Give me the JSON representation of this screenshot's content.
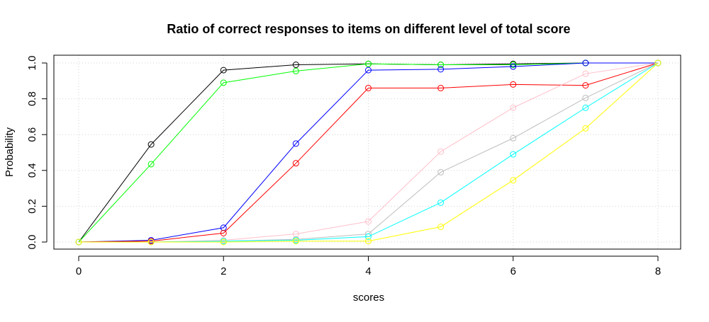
{
  "chart_data": {
    "type": "line",
    "title": "Ratio of correct responses to items on different level of total score",
    "xlabel": "scores",
    "ylabel": "Probability",
    "xlim": [
      0,
      8
    ],
    "ylim": [
      0,
      1
    ],
    "x_ticks": [
      "0",
      "2",
      "4",
      "6",
      "8"
    ],
    "y_ticks": [
      "0.0",
      "0.2",
      "0.4",
      "0.6",
      "0.8",
      "1.0"
    ],
    "grid": true,
    "x": [
      0,
      1,
      2,
      3,
      4,
      5,
      6,
      7,
      8
    ],
    "series": [
      {
        "color": "#000000",
        "values": [
          0,
          0.545,
          0.96,
          0.99,
          0.995,
          0.99,
          0.995,
          1.0,
          1.0
        ]
      },
      {
        "color": "#00ff00",
        "values": [
          0,
          0.435,
          0.89,
          0.955,
          0.995,
          0.99,
          0.99,
          1.0,
          1.0
        ]
      },
      {
        "color": "#0000ff",
        "values": [
          0,
          0.01,
          0.08,
          0.55,
          0.96,
          0.965,
          0.98,
          1.0,
          1.0
        ]
      },
      {
        "color": "#ff0000",
        "values": [
          0,
          0.005,
          0.05,
          0.44,
          0.86,
          0.86,
          0.88,
          0.875,
          1.0
        ]
      },
      {
        "color": "#ffc0cb",
        "values": [
          0,
          0.0,
          0.01,
          0.045,
          0.115,
          0.505,
          0.75,
          0.94,
          1.0
        ]
      },
      {
        "color": "#bebebe",
        "values": [
          0,
          0.0,
          0.005,
          0.015,
          0.045,
          0.39,
          0.58,
          0.805,
          1.0
        ]
      },
      {
        "color": "#00ffff",
        "values": [
          0,
          0.0,
          0.005,
          0.01,
          0.03,
          0.22,
          0.49,
          0.75,
          1.0
        ]
      },
      {
        "color": "#ffff00",
        "values": [
          0,
          0.0,
          0.0,
          0.005,
          0.005,
          0.085,
          0.345,
          0.635,
          1.0
        ]
      }
    ]
  }
}
